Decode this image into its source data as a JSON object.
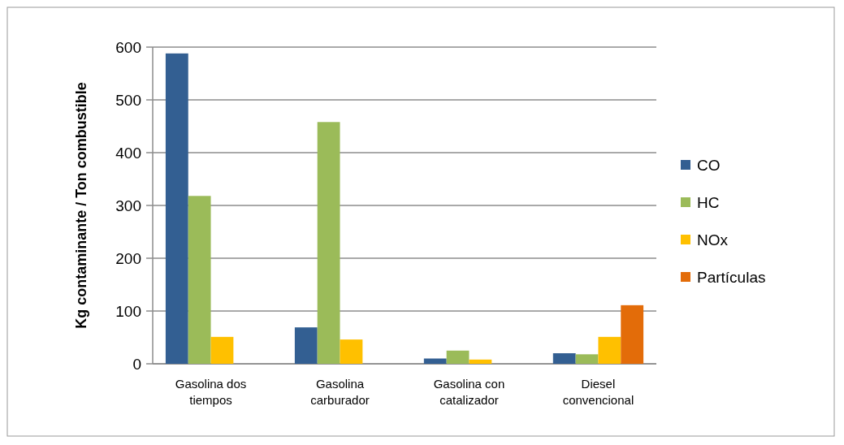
{
  "chart_data": {
    "type": "bar",
    "ylabel": "Kg contaminante / Ton combustible",
    "categories": [
      "Gasolina dos tiempos",
      "Gasolina carburador",
      "Gasolina con catalizador",
      "Diesel convencional"
    ],
    "series": [
      {
        "name": "CO",
        "color": "#335f92",
        "values": [
          588,
          69,
          10,
          20
        ]
      },
      {
        "name": "HC",
        "color": "#9bbb59",
        "values": [
          318,
          458,
          25,
          18
        ]
      },
      {
        "name": "NOx",
        "color": "#ffc000",
        "values": [
          51,
          46,
          8,
          51
        ]
      },
      {
        "name": "Partículas",
        "color": "#e36c09",
        "values": [
          null,
          null,
          null,
          111
        ]
      }
    ],
    "ylim": [
      0,
      600
    ],
    "yticks": [
      0,
      100,
      200,
      300,
      400,
      500,
      600
    ],
    "grid": "y",
    "legend": "right"
  }
}
